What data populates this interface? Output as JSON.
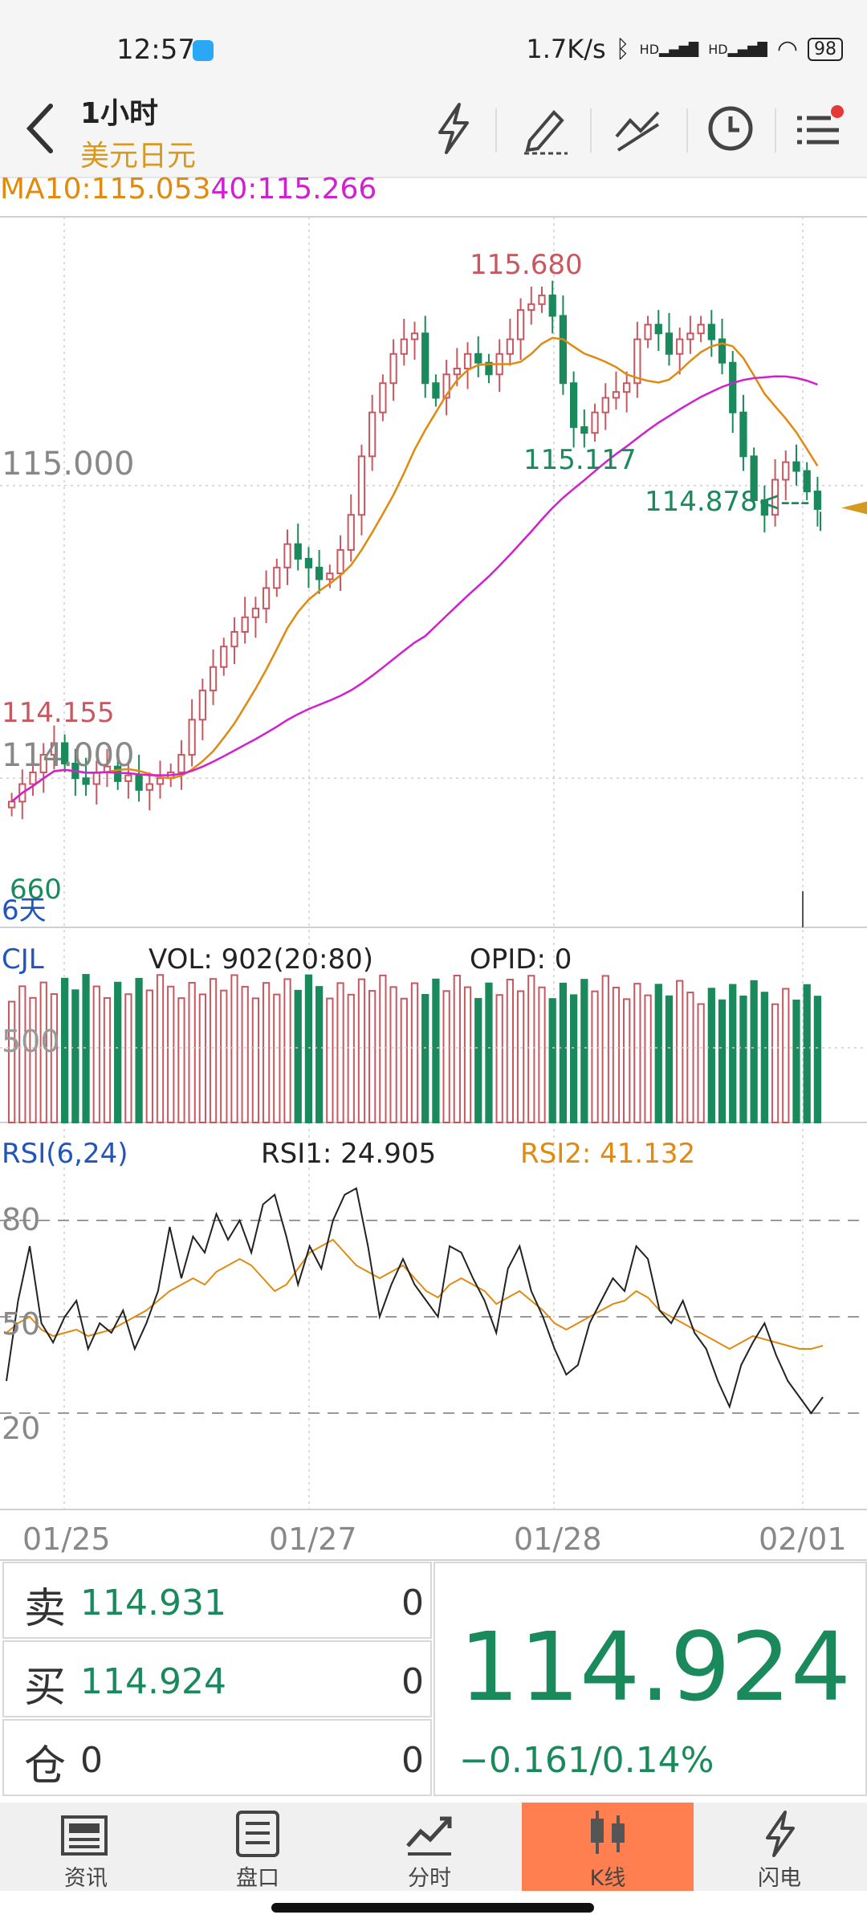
{
  "status": {
    "time": "12:57",
    "speed": "1.7K/s",
    "signal1": "HD",
    "signal2": "HD",
    "battery": "98"
  },
  "header": {
    "period": "1小时",
    "symbol": "美元日元",
    "icons": [
      "flash-icon",
      "pencil-icon",
      "draw-lines-icon",
      "clock-icon",
      "menu-icon"
    ]
  },
  "indicators": {
    "ma10": "MA10:115.053",
    "ma40": "40:115.266"
  },
  "price_chart": {
    "high_label": "115.680",
    "low_label_1": "115.117",
    "current_label": "114.878<---",
    "left_high": "114.155",
    "left_low": "660",
    "days": "6天",
    "y_tick_1": "115.000",
    "y_tick_2": "114.000"
  },
  "volume": {
    "name": "CJL",
    "vol": "VOL: 902(20:80)",
    "opid": "OPID: 0",
    "tick": "500"
  },
  "rsi": {
    "name": "RSI(6,24)",
    "rsi1": "RSI1: 24.905",
    "rsi2": "RSI2: 41.132",
    "levels": [
      "80",
      "50",
      "20"
    ]
  },
  "x_dates": [
    "01/25",
    "01/27",
    "01/28",
    "02/01"
  ],
  "quote": {
    "sell_label": "卖",
    "sell_price": "114.931",
    "sell_qty": "0",
    "buy_label": "买",
    "buy_price": "114.924",
    "buy_qty": "0",
    "pos_label": "仓",
    "pos_value": "0",
    "pos_qty": "0",
    "last_price": "114.924",
    "change": "−0.161/0.14%"
  },
  "nav": [
    {
      "label": "资讯",
      "icon": "news-icon"
    },
    {
      "label": "盘口",
      "icon": "orderbook-icon"
    },
    {
      "label": "分时",
      "icon": "timeshare-icon"
    },
    {
      "label": "K线",
      "icon": "candlestick-icon"
    },
    {
      "label": "闪电",
      "icon": "flash-icon"
    }
  ],
  "colors": {
    "up": "#c85860",
    "down": "#1a8a5c",
    "ma10": "#e08a10",
    "ma40": "#d020d0",
    "accent": "#ff7f50",
    "gold": "#d69a1f"
  },
  "chart_data": {
    "type": "candlestick",
    "title": "美元日元 1小时",
    "ylim": [
      113.6,
      115.85
    ],
    "price_close": [
      113.92,
      113.98,
      114.02,
      114.08,
      114.12,
      114.05,
      114.0,
      113.98,
      114.02,
      114.04,
      113.99,
      114.01,
      113.96,
      113.98,
      114.0,
      114.02,
      114.08,
      114.2,
      114.3,
      114.38,
      114.45,
      114.5,
      114.55,
      114.58,
      114.65,
      114.72,
      114.8,
      114.75,
      114.72,
      114.68,
      114.7,
      114.78,
      114.9,
      115.1,
      115.25,
      115.35,
      115.45,
      115.5,
      115.52,
      115.35,
      115.3,
      115.38,
      115.4,
      115.45,
      115.42,
      115.38,
      115.45,
      115.5,
      115.6,
      115.62,
      115.65,
      115.58,
      115.35,
      115.2,
      115.18,
      115.25,
      115.3,
      115.32,
      115.35,
      115.5,
      115.55,
      115.52,
      115.45,
      115.5,
      115.52,
      115.55,
      115.5,
      115.42,
      115.25,
      115.1,
      114.95,
      114.9,
      115.02,
      115.08,
      115.05,
      114.98,
      114.92
    ],
    "ma10_last": 115.053,
    "ma40_last": 115.266,
    "high": 115.68,
    "low_marks": [
      115.117,
      114.878
    ],
    "rsi1": [
      30,
      55,
      72,
      48,
      42,
      50,
      55,
      40,
      48,
      45,
      52,
      40,
      48,
      58,
      78,
      62,
      75,
      70,
      82,
      74,
      80,
      70,
      85,
      88,
      75,
      60,
      72,
      65,
      80,
      88,
      90,
      72,
      50,
      60,
      68,
      60,
      55,
      50,
      72,
      70,
      62,
      55,
      45,
      65,
      72,
      58,
      50,
      40,
      32,
      35,
      48,
      55,
      62,
      58,
      72,
      68,
      52,
      48,
      55,
      45,
      40,
      30,
      22,
      35,
      42,
      48,
      38,
      30,
      25,
      20,
      25
    ],
    "rsi2": [
      45,
      48,
      50,
      46,
      44,
      45,
      46,
      44,
      45,
      46,
      48,
      50,
      52,
      55,
      58,
      60,
      62,
      60,
      64,
      66,
      68,
      66,
      62,
      58,
      60,
      65,
      70,
      72,
      74,
      70,
      66,
      64,
      62,
      64,
      66,
      62,
      58,
      56,
      60,
      62,
      60,
      58,
      54,
      56,
      58,
      55,
      52,
      48,
      46,
      48,
      50,
      52,
      54,
      55,
      58,
      56,
      52,
      50,
      48,
      46,
      44,
      42,
      40,
      42,
      44,
      43,
      42,
      41,
      40,
      40,
      41
    ]
  }
}
